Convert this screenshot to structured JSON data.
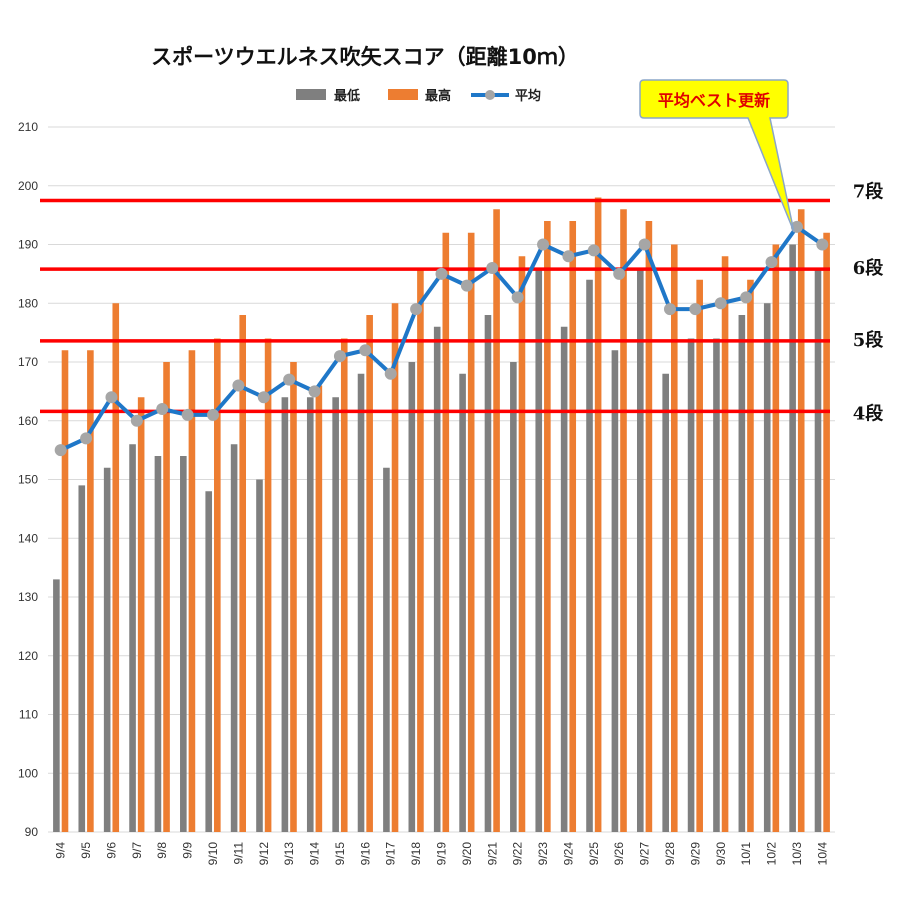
{
  "chart_data": {
    "type": "bar",
    "title": "スポーツウエルネス吹矢スコア（距離10ｍ）",
    "categories": [
      "9/4",
      "9/5",
      "9/6",
      "9/7",
      "9/8",
      "9/9",
      "9/10",
      "9/11",
      "9/12",
      "9/13",
      "9/14",
      "9/15",
      "9/16",
      "9/17",
      "9/18",
      "9/19",
      "9/20",
      "9/21",
      "9/22",
      "9/23",
      "9/24",
      "9/25",
      "9/26",
      "9/27",
      "9/28",
      "9/29",
      "9/30",
      "10/1",
      "10/2",
      "10/3",
      "10/4"
    ],
    "series": [
      {
        "name": "最低",
        "type": "bar",
        "color": "#7f7f7f",
        "values": [
          133,
          149,
          152,
          156,
          154,
          154,
          148,
          156,
          150,
          164,
          164,
          164,
          168,
          152,
          170,
          176,
          168,
          178,
          170,
          186,
          176,
          184,
          172,
          186,
          168,
          174,
          174,
          178,
          180,
          190,
          186
        ]
      },
      {
        "name": "最高",
        "type": "bar",
        "color": "#ed7d31",
        "values": [
          172,
          172,
          180,
          164,
          170,
          172,
          174,
          178,
          174,
          170,
          166,
          174,
          178,
          180,
          186,
          192,
          192,
          196,
          188,
          194,
          194,
          198,
          196,
          194,
          190,
          184,
          188,
          184,
          190,
          196,
          192
        ]
      },
      {
        "name": "平均",
        "type": "line",
        "color": "#1f77c8",
        "marker_color": "#a6a6a6",
        "values": [
          155,
          157,
          164,
          160,
          162,
          161,
          161,
          166,
          164,
          167,
          165,
          171,
          172,
          168,
          179,
          185,
          183,
          186,
          181,
          190,
          188,
          189,
          185,
          190,
          179,
          179,
          180,
          181,
          187,
          193,
          190
        ]
      }
    ],
    "ylim": [
      90,
      210
    ],
    "yticks": [
      90,
      100,
      110,
      120,
      130,
      140,
      150,
      160,
      170,
      180,
      190,
      200,
      210
    ],
    "grid": true,
    "legend_position": "top-center",
    "reference_lines": [
      {
        "label": "7段",
        "value": 197.5,
        "color": "#ff0000"
      },
      {
        "label": "6段",
        "value": 185.8,
        "color": "#ff0000"
      },
      {
        "label": "5段",
        "value": 173.6,
        "color": "#ff0000"
      },
      {
        "label": "4段",
        "value": 161.6,
        "color": "#ff0000"
      }
    ],
    "annotation": {
      "text": "平均ベスト更新",
      "target_category": "10/3",
      "fill": "#ffff00",
      "text_color": "#e00000"
    }
  }
}
